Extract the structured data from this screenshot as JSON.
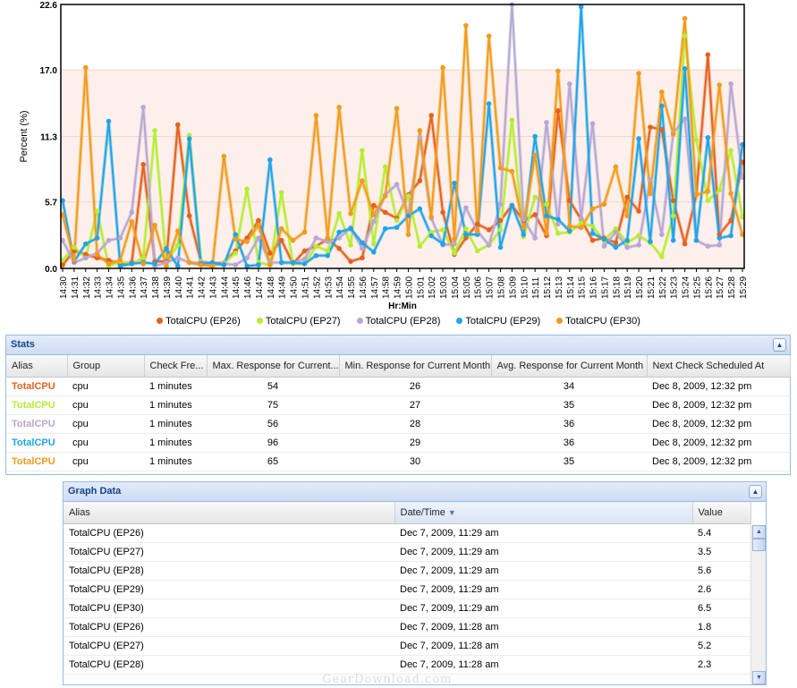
{
  "chart_data": {
    "type": "line",
    "xlabel": "Hr:Min",
    "ylabel": "Percent (%)",
    "ylim": [
      0,
      22.6
    ],
    "yticks": [
      "0.0",
      "5.7",
      "11.3",
      "17.0",
      "22.6"
    ],
    "grid": true,
    "legend_position": "bottom",
    "x": [
      "14:30",
      "14:31",
      "14:32",
      "14:33",
      "14:34",
      "14:35",
      "14:36",
      "14:37",
      "14:38",
      "14:39",
      "14:40",
      "14:41",
      "14:42",
      "14:43",
      "14:44",
      "14:45",
      "14:46",
      "14:47",
      "14:48",
      "14:49",
      "14:50",
      "14:51",
      "14:52",
      "14:53",
      "14:54",
      "14:55",
      "14:56",
      "14:57",
      "14:58",
      "14:59",
      "15:00",
      "15:01",
      "15:02",
      "15:03",
      "15:04",
      "15:05",
      "15:06",
      "15:07",
      "15:08",
      "15:09",
      "15:10",
      "15:11",
      "15:12",
      "15:13",
      "15:14",
      "15:15",
      "15:16",
      "15:17",
      "15:18",
      "15:19",
      "15:20",
      "15:21",
      "15:22",
      "15:23",
      "15:24",
      "15:25",
      "15:26",
      "15:27",
      "15:28",
      "15:29"
    ],
    "series": [
      {
        "name": "TotalCPU (EP26)",
        "color": "#e8601c",
        "values": [
          0.3,
          1.5,
          1.2,
          0.9,
          0.7,
          0.4,
          0.5,
          8.9,
          0.6,
          0.6,
          12.3,
          4.5,
          0.6,
          0.4,
          0.5,
          1.5,
          2.6,
          4.1,
          1.3,
          2.4,
          0.4,
          1.5,
          1.9,
          2.5,
          1.7,
          0.6,
          0.9,
          5.4,
          4.8,
          4.3,
          6.3,
          7.5,
          13.1,
          4.8,
          1.2,
          2.6,
          3.8,
          3.3,
          4.1,
          5.4,
          4.1,
          4.6,
          2.8,
          13.5,
          5.8,
          4.2,
          2.4,
          2.6,
          2.2,
          6.1,
          4.9,
          12.1,
          11.9,
          5.8,
          2.1,
          6.3,
          18.3,
          2.9,
          4.1,
          9.1
        ]
      },
      {
        "name": "TotalCPU (EP27)",
        "color": "#b5ee30",
        "values": [
          0.7,
          1.8,
          0.9,
          4.9,
          0.2,
          0.6,
          0.4,
          0.9,
          11.8,
          0.5,
          2.0,
          11.4,
          0.6,
          0.2,
          0.5,
          1.3,
          6.8,
          0.5,
          0.3,
          6.5,
          0.4,
          0.4,
          1.9,
          1.5,
          4.7,
          2.0,
          10.1,
          2.1,
          8.7,
          4.1,
          6.2,
          1.9,
          3.1,
          3.3,
          1.3,
          3.4,
          1.5,
          2.0,
          3.3,
          12.7,
          2.7,
          6.1,
          5.5,
          3.0,
          3.1,
          3.9,
          3.6,
          2.4,
          3.4,
          2.2,
          2.8,
          2.2,
          1.0,
          4.5,
          19.9,
          11.0,
          5.8,
          6.7,
          10.1,
          4.4
        ]
      },
      {
        "name": "TotalCPU (EP28)",
        "color": "#b7a7d4",
        "values": [
          2.4,
          0.5,
          0.9,
          1.3,
          2.4,
          2.6,
          4.8,
          13.8,
          0.2,
          0.5,
          0.9,
          0.5,
          0.5,
          0.3,
          0.4,
          0.3,
          0.9,
          2.6,
          0.5,
          0.5,
          0.5,
          0.8,
          2.6,
          2.3,
          2.6,
          3.5,
          1.7,
          4.0,
          6.3,
          7.2,
          4.6,
          11.2,
          4.3,
          2.0,
          2.1,
          5.2,
          3.2,
          2.0,
          5.5,
          22.6,
          4.2,
          2.6,
          12.5,
          3.8,
          15.8,
          4.3,
          12.4,
          1.9,
          3.1,
          1.8,
          2.0,
          7.6,
          2.9,
          11.6,
          12.8,
          2.4,
          1.9,
          2.0,
          15.8,
          7.8
        ]
      },
      {
        "name": "TotalCPU (EP29)",
        "color": "#1ea5e8",
        "values": [
          5.8,
          0.6,
          2.1,
          2.6,
          12.6,
          0.2,
          0.4,
          0.5,
          0.4,
          1.7,
          0.2,
          11.1,
          0.4,
          0.5,
          0.3,
          2.9,
          0.2,
          0.3,
          9.3,
          0.5,
          0.5,
          0.4,
          1.1,
          1.1,
          3.1,
          3.4,
          2.2,
          1.4,
          3.4,
          3.5,
          4.5,
          5.1,
          2.8,
          2.1,
          7.3,
          2.9,
          2.9,
          14.1,
          1.8,
          5.4,
          2.9,
          11.3,
          4.5,
          4.2,
          3.2,
          22.4,
          3.0,
          2.5,
          1.8,
          2.4,
          11.1,
          2.3,
          13.9,
          2.4,
          17.1,
          2.4,
          11.2,
          2.6,
          2.8,
          10.6
        ]
      },
      {
        "name": "TotalCPU (EP30)",
        "color": "#f39b1a",
        "values": [
          4.6,
          0.7,
          17.2,
          1.2,
          0.4,
          0.7,
          4.0,
          0.4,
          3.7,
          0.2,
          3.2,
          0.5,
          0.3,
          0.2,
          9.6,
          2.5,
          2.3,
          3.7,
          0.3,
          3.4,
          2.4,
          3.1,
          13.1,
          2.6,
          13.8,
          4.7,
          7.5,
          4.6,
          6.2,
          13.7,
          2.9,
          11.8,
          4.4,
          17.2,
          2.5,
          20.8,
          3.2,
          19.9,
          8.6,
          8.3,
          3.5,
          9.7,
          3.0,
          16.9,
          3.6,
          3.5,
          5.1,
          5.5,
          8.7,
          4.5,
          16.7,
          6.4,
          15.1,
          11.5,
          21.4,
          6.3,
          6.6,
          15.7,
          6.4,
          2.9
        ]
      }
    ]
  },
  "stats_panel": {
    "title": "Stats",
    "columns": [
      "Alias",
      "Group",
      "Check Fre...",
      "Max. Response for Current...",
      "Min. Response for Current Month",
      "Avg. Response for Current Month",
      "Next Check Scheduled At"
    ],
    "rows": [
      {
        "alias": "TotalCPU",
        "color": "#e8601c",
        "group": "cpu",
        "freq": "1 minutes",
        "max": "54",
        "min": "26",
        "avg": "34",
        "next": "Dec 8, 2009, 12:32 pm"
      },
      {
        "alias": "TotalCPU",
        "color": "#b5ee30",
        "group": "cpu",
        "freq": "1 minutes",
        "max": "75",
        "min": "27",
        "avg": "35",
        "next": "Dec 8, 2009, 12:32 pm"
      },
      {
        "alias": "TotalCPU",
        "color": "#b7a7d4",
        "group": "cpu",
        "freq": "1 minutes",
        "max": "56",
        "min": "28",
        "avg": "36",
        "next": "Dec 8, 2009, 12:32 pm"
      },
      {
        "alias": "TotalCPU",
        "color": "#1ea5e8",
        "group": "cpu",
        "freq": "1 minutes",
        "max": "96",
        "min": "29",
        "avg": "36",
        "next": "Dec 8, 2009, 12:32 pm"
      },
      {
        "alias": "TotalCPU",
        "color": "#f39b1a",
        "group": "cpu",
        "freq": "1 minutes",
        "max": "65",
        "min": "30",
        "avg": "35",
        "next": "Dec 8, 2009, 12:32 pm"
      }
    ]
  },
  "graph_panel": {
    "title": "Graph Data",
    "columns": [
      "Alias",
      "Date/Time",
      "Value"
    ],
    "sort_icon": "sort-desc-icon",
    "rows": [
      {
        "alias": "TotalCPU (EP26)",
        "time": "Dec 7, 2009, 11:29 am",
        "value": "5.4"
      },
      {
        "alias": "TotalCPU (EP27)",
        "time": "Dec 7, 2009, 11:29 am",
        "value": "3.5"
      },
      {
        "alias": "TotalCPU (EP28)",
        "time": "Dec 7, 2009, 11:29 am",
        "value": "5.6"
      },
      {
        "alias": "TotalCPU (EP29)",
        "time": "Dec 7, 2009, 11:29 am",
        "value": "2.6"
      },
      {
        "alias": "TotalCPU (EP30)",
        "time": "Dec 7, 2009, 11:29 am",
        "value": "6.5"
      },
      {
        "alias": "TotalCPU (EP26)",
        "time": "Dec 7, 2009, 11:28 am",
        "value": "1.8"
      },
      {
        "alias": "TotalCPU (EP27)",
        "time": "Dec 7, 2009, 11:28 am",
        "value": "5.2"
      },
      {
        "alias": "TotalCPU (EP28)",
        "time": "Dec 7, 2009, 11:28 am",
        "value": "2.3"
      }
    ]
  },
  "watermark": "GearDownload.com"
}
